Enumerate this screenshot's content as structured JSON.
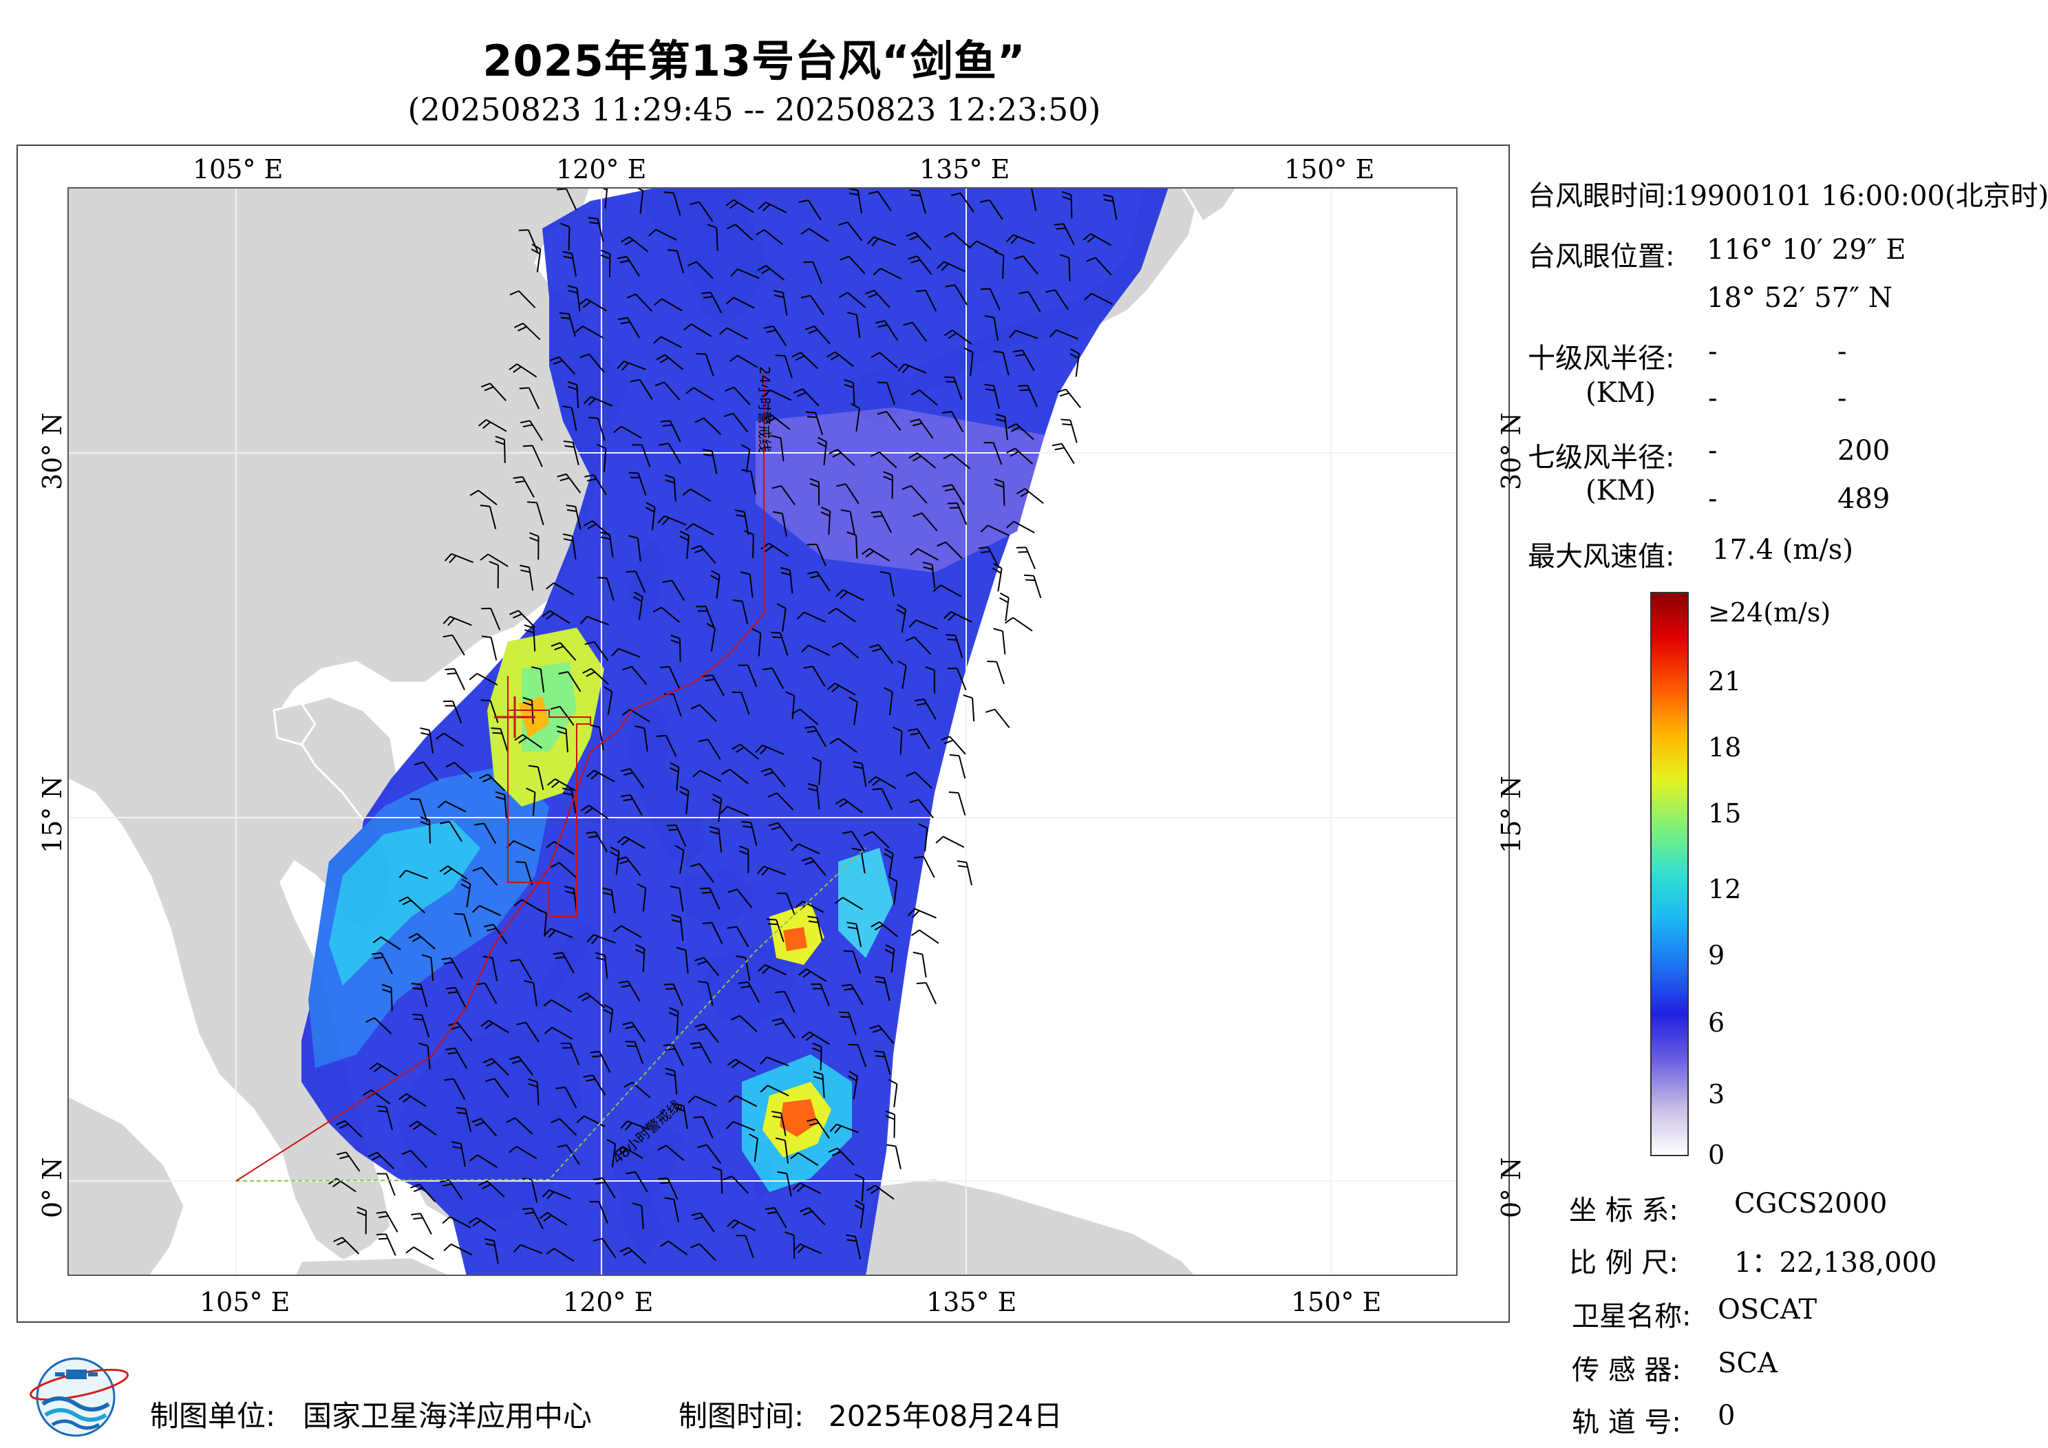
{
  "header": {
    "title": "2025年第13号台风“剑鱼”",
    "subtitle": "(20250823 11:29:45 -- 20250823 12:23:50)"
  },
  "map": {
    "lon_range": [
      100,
      157
    ],
    "lat_range": [
      -4,
      41
    ],
    "top_lon_labels": [
      "105° E",
      "120° E",
      "135° E",
      "150° E"
    ],
    "bottom_lon_labels": [
      "105° E",
      "120° E",
      "135° E",
      "150° E"
    ],
    "left_lat_labels": [
      "30° N",
      "15° N",
      "0° N"
    ],
    "right_lat_labels": [
      "30° N",
      "15° N",
      "0° N"
    ],
    "boundary_labels": [
      "24小时警戒线",
      "48小时警戒线"
    ],
    "land_color": "#d6d6d6",
    "ocean_color": "#ffffff",
    "boundary_color": "#cc1111",
    "warning_line_color": "#8bc34a"
  },
  "info": {
    "eye_time_label": "台风眼时间:",
    "eye_time_value": "19900101 16:00:00(北京时)",
    "eye_pos_label": "台风眼位置:",
    "eye_lon": "116° 10′ 29″ E",
    "eye_lat": "18° 52′ 57″ N",
    "r10_label": "十级风半径:",
    "r10_unit": "(KM)",
    "r10_values": [
      "-",
      "-",
      "-",
      "-"
    ],
    "r7_label": "七级风半径:",
    "r7_unit": "(KM)",
    "r7_values": [
      "-",
      "200",
      "-",
      "489"
    ],
    "max_wind_label": "最大风速值:",
    "max_wind_value": "17.4  (m/s)"
  },
  "legend": {
    "labels": [
      "≥24(m/s)",
      "21",
      "18",
      "15",
      "12",
      "9",
      "6",
      "3",
      "0"
    ],
    "colors": [
      "#ffffff",
      "#c9bfe6",
      "#6a5ee0",
      "#2020e0",
      "#1f6cf0",
      "#1cb8f2",
      "#30e0d0",
      "#7df07a",
      "#e6f21e",
      "#ffb400",
      "#ff5a00",
      "#e00000",
      "#8a0000"
    ]
  },
  "meta": {
    "crs_label": "坐 标 系:",
    "crs_value": "CGCS2000",
    "scale_label": "比 例 尺:",
    "scale_value": "1：22,138,000",
    "satellite_label": "卫星名称:",
    "satellite_value": "OSCAT",
    "sensor_label": "传 感 器:",
    "sensor_value": "SCA",
    "orbit_label": "轨 道 号:",
    "orbit_value": "0"
  },
  "footer": {
    "org_label": "制图单位:",
    "org_value": "国家卫星海洋应用中心",
    "date_label": "制图时间:",
    "date_value": "2025年08月24日"
  }
}
